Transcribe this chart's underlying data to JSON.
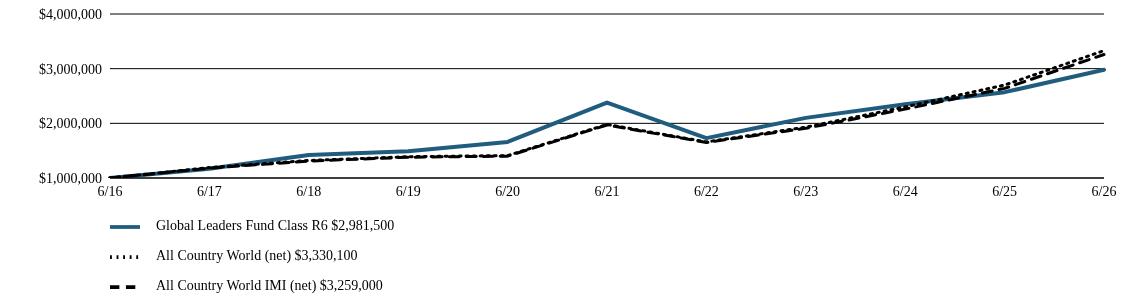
{
  "chart_data": {
    "type": "line",
    "categories": [
      "6/16",
      "6/17",
      "6/18",
      "6/19",
      "6/20",
      "6/21",
      "6/22",
      "6/23",
      "6/24",
      "6/25",
      "6/26"
    ],
    "series": [
      {
        "name": "Global Leaders Fund Class R6 $2,981,500",
        "color": "#1f5c7e",
        "line_style": "solid",
        "values": [
          1000000,
          1170000,
          1420000,
          1490000,
          1660000,
          2380000,
          1730000,
          2100000,
          2350000,
          2570000,
          2981500
        ]
      },
      {
        "name": "All Country World (net) $3,330,100",
        "color": "#000000",
        "line_style": "dotted",
        "values": [
          1000000,
          1190000,
          1320000,
          1390000,
          1410000,
          1980000,
          1660000,
          1930000,
          2300000,
          2700000,
          3330100
        ]
      },
      {
        "name": "All Country World IMI (net) $3,259,000",
        "color": "#000000",
        "line_style": "dashed",
        "values": [
          1000000,
          1180000,
          1310000,
          1380000,
          1400000,
          1970000,
          1650000,
          1910000,
          2260000,
          2640000,
          3259000
        ]
      }
    ],
    "ylim": [
      1000000,
      4000000
    ],
    "yticks": [
      {
        "value": 1000000,
        "label": "$1,000,000"
      },
      {
        "value": 2000000,
        "label": "$2,000,000"
      },
      {
        "value": 3000000,
        "label": "$3,000,000"
      },
      {
        "value": 4000000,
        "label": "$4,000,000"
      }
    ],
    "grid": "y",
    "legend": "bottom left",
    "marker": "none"
  }
}
